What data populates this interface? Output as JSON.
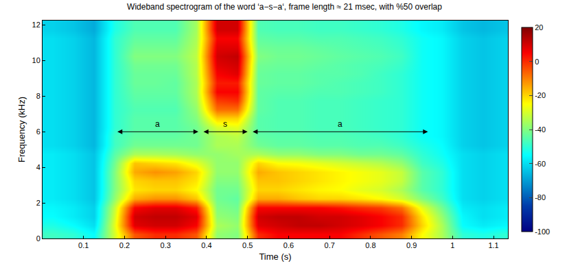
{
  "chart_data": {
    "type": "heatmap",
    "title": "Wideband spectrogram of the word ‘a−s−a‘, frame length ≈ 21 msec, with %50 overlap",
    "x_label": "Time (s)",
    "y_label": "Frequency (kHz)",
    "xlim": [
      0,
      1.135
    ],
    "ylim": [
      0,
      12.25
    ],
    "xticks": [
      0.1,
      0.2,
      0.3,
      0.4,
      0.5,
      0.6,
      0.7,
      0.8,
      0.9,
      1,
      1.1
    ],
    "yticks": [
      0,
      2,
      4,
      6,
      8,
      10,
      12
    ],
    "colorbar": {
      "range": [
        -100,
        20
      ],
      "ticks": [
        20,
        0,
        -20,
        -40,
        -60,
        -80,
        -100
      ]
    },
    "annotations": [
      {
        "text": "a",
        "x0": 0.18,
        "x1": 0.38,
        "y": 6
      },
      {
        "text": "s",
        "x0": 0.39,
        "x1": 0.5,
        "y": 6
      },
      {
        "text": "a",
        "x0": 0.51,
        "x1": 0.94,
        "y": 6
      }
    ],
    "x": [
      0.025,
      0.075,
      0.125,
      0.175,
      0.225,
      0.275,
      0.325,
      0.375,
      0.425,
      0.475,
      0.525,
      0.575,
      0.625,
      0.675,
      0.725,
      0.775,
      0.825,
      0.875,
      0.925,
      0.975,
      1.025,
      1.075,
      1.125
    ],
    "y": [
      0.25,
      0.75,
      1.25,
      1.75,
      2.25,
      2.75,
      3.25,
      3.75,
      4.25,
      4.75,
      5.25,
      5.75,
      6.25,
      6.75,
      7.25,
      7.75,
      8.25,
      8.75,
      9.25,
      9.75,
      10.25,
      10.75,
      11.25,
      11.75,
      12.25
    ],
    "z": [
      [
        -48,
        -50,
        -55,
        -30,
        -5,
        0,
        0,
        -5,
        -38,
        -40,
        0,
        5,
        5,
        5,
        5,
        0,
        -5,
        -10,
        -25,
        -35,
        -50,
        -52,
        -50
      ],
      [
        -52,
        -55,
        -60,
        -28,
        8,
        10,
        10,
        5,
        -35,
        -38,
        8,
        10,
        12,
        12,
        10,
        8,
        5,
        0,
        -20,
        -35,
        -55,
        -58,
        -56
      ],
      [
        -55,
        -58,
        -62,
        -30,
        10,
        12,
        12,
        8,
        -38,
        -40,
        10,
        12,
        12,
        10,
        10,
        8,
        5,
        0,
        -22,
        -38,
        -56,
        -60,
        -58
      ],
      [
        -56,
        -58,
        -62,
        -32,
        5,
        8,
        8,
        2,
        -40,
        -42,
        5,
        5,
        5,
        5,
        3,
        0,
        -2,
        -8,
        -28,
        -42,
        -58,
        -60,
        -58
      ],
      [
        -58,
        -60,
        -64,
        -38,
        -15,
        -12,
        -12,
        -18,
        -42,
        -44,
        -15,
        -15,
        -18,
        -20,
        -20,
        -22,
        -25,
        -30,
        -40,
        -48,
        -60,
        -62,
        -60
      ],
      [
        -58,
        -60,
        -64,
        -40,
        -22,
        -20,
        -20,
        -25,
        -42,
        -42,
        -20,
        -20,
        -22,
        -24,
        -25,
        -28,
        -30,
        -35,
        -45,
        -50,
        -60,
        -62,
        -60
      ],
      [
        -58,
        -60,
        -64,
        -40,
        -20,
        -18,
        -18,
        -22,
        -40,
        -40,
        -18,
        -18,
        -20,
        -22,
        -24,
        -26,
        -28,
        -32,
        -45,
        -50,
        -60,
        -62,
        -60
      ],
      [
        -58,
        -60,
        -64,
        -40,
        -15,
        -12,
        -14,
        -20,
        -38,
        -38,
        -15,
        -18,
        -20,
        -22,
        -24,
        -26,
        -28,
        -32,
        -45,
        -50,
        -60,
        -62,
        -60
      ],
      [
        -58,
        -60,
        -64,
        -42,
        -18,
        -20,
        -22,
        -28,
        -38,
        -38,
        -20,
        -25,
        -26,
        -28,
        -30,
        -32,
        -34,
        -38,
        -48,
        -52,
        -60,
        -62,
        -60
      ],
      [
        -58,
        -60,
        -64,
        -45,
        -35,
        -35,
        -36,
        -38,
        -38,
        -36,
        -35,
        -38,
        -38,
        -40,
        -40,
        -42,
        -42,
        -44,
        -50,
        -54,
        -60,
        -62,
        -60
      ],
      [
        -60,
        -62,
        -66,
        -48,
        -42,
        -42,
        -42,
        -42,
        -35,
        -35,
        -42,
        -44,
        -44,
        -45,
        -45,
        -46,
        -46,
        -48,
        -52,
        -55,
        -62,
        -64,
        -62
      ],
      [
        -60,
        -62,
        -66,
        -48,
        -44,
        -44,
        -44,
        -42,
        -35,
        -33,
        -44,
        -45,
        -45,
        -46,
        -46,
        -47,
        -48,
        -50,
        -54,
        -56,
        -62,
        -64,
        -62
      ],
      [
        -60,
        -62,
        -66,
        -50,
        -45,
        -45,
        -45,
        -42,
        -30,
        -28,
        -45,
        -46,
        -46,
        -47,
        -47,
        -48,
        -49,
        -50,
        -54,
        -56,
        -62,
        -64,
        -62
      ],
      [
        -60,
        -62,
        -66,
        -50,
        -45,
        -45,
        -45,
        -40,
        -20,
        -20,
        -45,
        -46,
        -46,
        -47,
        -47,
        -48,
        -49,
        -50,
        -54,
        -56,
        -62,
        -64,
        -62
      ],
      [
        -60,
        -62,
        -66,
        -50,
        -46,
        -46,
        -46,
        -38,
        -8,
        -8,
        -44,
        -46,
        -46,
        -47,
        -47,
        -48,
        -49,
        -50,
        -54,
        -56,
        -62,
        -64,
        -62
      ],
      [
        -60,
        -62,
        -66,
        -50,
        -45,
        -45,
        -45,
        -36,
        -2,
        0,
        -44,
        -46,
        -46,
        -47,
        -47,
        -48,
        -49,
        -50,
        -54,
        -56,
        -62,
        -64,
        -62
      ],
      [
        -60,
        -62,
        -66,
        -50,
        -44,
        -44,
        -44,
        -35,
        5,
        5,
        -44,
        -45,
        -45,
        -46,
        -46,
        -47,
        -48,
        -50,
        -54,
        -56,
        -62,
        -64,
        -62
      ],
      [
        -60,
        -62,
        -66,
        -50,
        -43,
        -43,
        -44,
        -35,
        2,
        2,
        -43,
        -44,
        -44,
        -45,
        -46,
        -47,
        -48,
        -50,
        -54,
        -56,
        -62,
        -64,
        -62
      ],
      [
        -60,
        -62,
        -66,
        -50,
        -43,
        -43,
        -43,
        -34,
        5,
        8,
        -43,
        -44,
        -44,
        -45,
        -45,
        -46,
        -48,
        -50,
        -54,
        -56,
        -62,
        -64,
        -62
      ],
      [
        -60,
        -62,
        -66,
        -50,
        -42,
        -42,
        -42,
        -34,
        8,
        10,
        -42,
        -43,
        -43,
        -44,
        -45,
        -46,
        -47,
        -49,
        -54,
        -56,
        -62,
        -64,
        -62
      ],
      [
        -60,
        -62,
        -66,
        -50,
        -40,
        -40,
        -40,
        -33,
        10,
        12,
        -40,
        -42,
        -42,
        -43,
        -44,
        -45,
        -46,
        -48,
        -54,
        -56,
        -62,
        -64,
        -62
      ],
      [
        -60,
        -62,
        -66,
        -50,
        -42,
        -42,
        -42,
        -34,
        8,
        8,
        -42,
        -43,
        -43,
        -44,
        -45,
        -46,
        -47,
        -49,
        -54,
        -56,
        -62,
        -64,
        -62
      ],
      [
        -60,
        -62,
        -66,
        -50,
        -44,
        -44,
        -44,
        -35,
        5,
        5,
        -44,
        -45,
        -45,
        -46,
        -46,
        -47,
        -48,
        -50,
        -54,
        -56,
        -62,
        -64,
        -62
      ],
      [
        -62,
        -64,
        -68,
        -52,
        -46,
        -46,
        -46,
        -36,
        10,
        10,
        -46,
        -47,
        -47,
        -48,
        -48,
        -49,
        -50,
        -52,
        -56,
        -58,
        -64,
        -66,
        -64
      ],
      [
        -62,
        -64,
        -68,
        -52,
        -46,
        -46,
        -46,
        -36,
        10,
        10,
        -46,
        -47,
        -47,
        -48,
        -48,
        -49,
        -50,
        -52,
        -56,
        -58,
        -64,
        -66,
        -64
      ]
    ]
  }
}
